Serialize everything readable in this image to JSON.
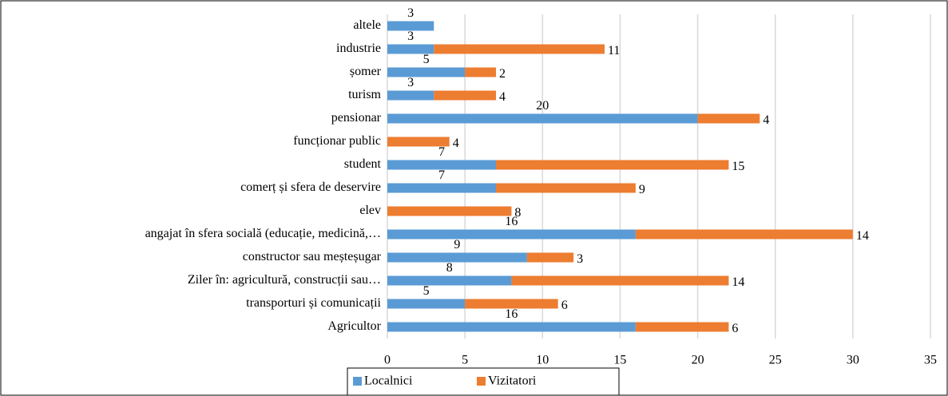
{
  "chart_data": {
    "type": "stacked_barh",
    "categories": [
      "altele",
      "industrie",
      "șomer",
      "turism",
      "pensionar",
      "funcționar public",
      "student",
      "comerț și sfera de deservire",
      "elev",
      "angajat în sfera socială (educație, medicină,…",
      "constructor sau meșteșugar",
      "Ziler în: agricultură, construcții sau…",
      "transporturi și comunicații",
      "Agricultor"
    ],
    "series": [
      {
        "name": "Localnici",
        "color": "#5b9bd5",
        "values": [
          3,
          3,
          5,
          3,
          20,
          null,
          7,
          7,
          null,
          16,
          9,
          8,
          5,
          16
        ]
      },
      {
        "name": "Vizitatori",
        "color": "#ed7d31",
        "values": [
          null,
          11,
          2,
          4,
          4,
          4,
          15,
          9,
          8,
          14,
          3,
          14,
          6,
          6
        ]
      }
    ],
    "xlim": [
      0,
      35
    ],
    "xticks": [
      0,
      5,
      10,
      15,
      20,
      25,
      30,
      35
    ],
    "grid": true,
    "legend": "bottom"
  }
}
